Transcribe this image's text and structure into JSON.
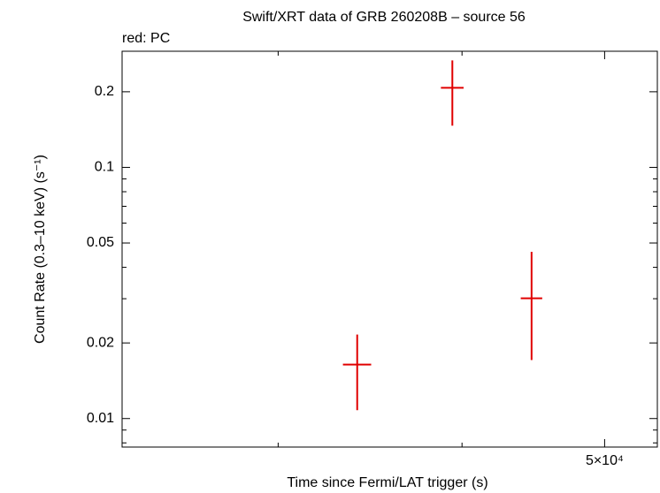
{
  "chart_data": {
    "type": "scatter",
    "title": "Swift/XRT data of GRB 260208B – source 56",
    "subtitle": "red: PC",
    "x_label": "Time since Fermi/LAT trigger (s)",
    "y_label": "Count Rate (0.3–10 keV) (s⁻¹)",
    "xscale": "log",
    "yscale": "log",
    "xlim": [
      23500,
      54300
    ],
    "ylim": [
      0.0077,
      0.29
    ],
    "xticks": [
      {
        "value": 50000,
        "label": "5×10⁴"
      }
    ],
    "xminorticks": [
      30000,
      40000
    ],
    "yticks": [
      0.01,
      0.02,
      0.05,
      0.1,
      0.2
    ],
    "yminorticks": [
      0.008,
      0.009,
      0.03,
      0.04,
      0.06,
      0.07,
      0.08,
      0.09
    ],
    "series": [
      {
        "name": "PC",
        "color": "#e00000",
        "x": [
          33950,
          39400,
          44600
        ],
        "xerr": [
          750,
          700,
          750
        ],
        "values": [
          0.0164,
          0.2075,
          0.0301
        ],
        "yerr_plus": [
          0.0052,
          0.059,
          0.016
        ],
        "yerr_minus": [
          0.0056,
          0.061,
          0.013
        ]
      }
    ]
  }
}
